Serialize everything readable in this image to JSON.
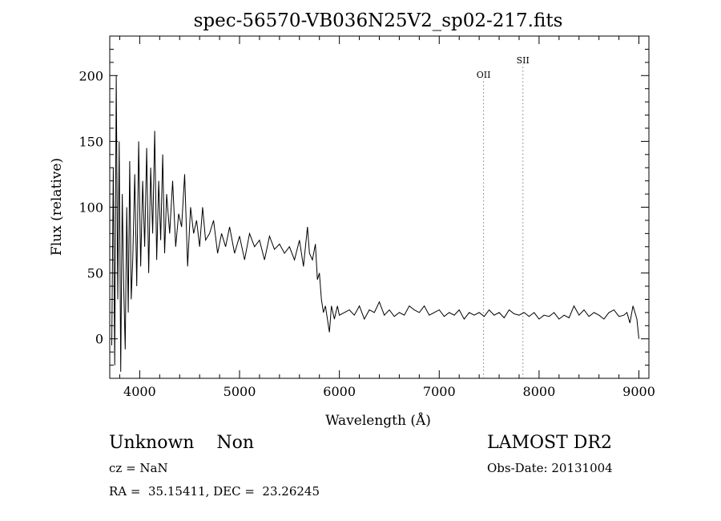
{
  "chart_data": {
    "type": "line",
    "title": "spec-56570-VB036N25V2_sp02-217.fits",
    "xlabel": "Wavelength (Å)",
    "ylabel": "Flux (relative)",
    "xlim": [
      3700,
      9100
    ],
    "ylim": [
      -30,
      230
    ],
    "xticks": [
      "4000",
      "5000",
      "6000",
      "7000",
      "8000",
      "9000"
    ],
    "yticks": [
      "0",
      "50",
      "100",
      "150",
      "200"
    ],
    "grid": false,
    "line_color": "#000000",
    "marker_color": "#7f7f7f",
    "lines": [
      {
        "label": "OII",
        "x": 7444
      },
      {
        "label": "SII",
        "x": 7838
      }
    ],
    "series": [
      {
        "x": [
          3720,
          3735,
          3750,
          3765,
          3780,
          3795,
          3810,
          3825,
          3840,
          3855,
          3870,
          3885,
          3900,
          3915,
          3930,
          3950,
          3970,
          3990,
          4010,
          4030,
          4050,
          4070,
          4090,
          4110,
          4130,
          4150,
          4170,
          4190,
          4210,
          4230,
          4250,
          4270,
          4300,
          4330,
          4360,
          4390,
          4420,
          4450,
          4480,
          4510,
          4540,
          4570,
          4600,
          4630,
          4660,
          4700,
          4740,
          4780,
          4820,
          4860,
          4900,
          4950,
          5000,
          5050,
          5100,
          5150,
          5200,
          5250,
          5300,
          5350,
          5400,
          5450,
          5500,
          5550,
          5600,
          5640,
          5680,
          5700,
          5730,
          5760,
          5780,
          5800,
          5820,
          5840,
          5860,
          5880,
          5900,
          5920,
          5950,
          5980,
          6000,
          6050,
          6100,
          6150,
          6200,
          6250,
          6300,
          6350,
          6400,
          6450,
          6500,
          6550,
          6600,
          6650,
          6700,
          6750,
          6800,
          6850,
          6900,
          6950,
          7000,
          7050,
          7100,
          7150,
          7200,
          7250,
          7300,
          7350,
          7400,
          7450,
          7500,
          7550,
          7600,
          7650,
          7700,
          7750,
          7800,
          7850,
          7900,
          7950,
          8000,
          8050,
          8100,
          8150,
          8200,
          8250,
          8300,
          8350,
          8400,
          8450,
          8500,
          8550,
          8600,
          8650,
          8700,
          8750,
          8800,
          8850,
          8880,
          8910,
          8940,
          8960,
          8980,
          9000
        ],
        "y": [
          -5,
          130,
          -20,
          200,
          30,
          150,
          -25,
          110,
          40,
          -8,
          100,
          20,
          135,
          30,
          60,
          125,
          40,
          150,
          55,
          120,
          70,
          145,
          50,
          130,
          80,
          158,
          60,
          120,
          75,
          140,
          65,
          110,
          80,
          120,
          70,
          95,
          85,
          125,
          55,
          100,
          80,
          90,
          70,
          100,
          75,
          80,
          90,
          65,
          80,
          70,
          85,
          65,
          78,
          60,
          80,
          70,
          75,
          60,
          78,
          68,
          72,
          65,
          70,
          60,
          75,
          55,
          85,
          65,
          60,
          72,
          45,
          50,
          30,
          20,
          25,
          15,
          5,
          25,
          15,
          25,
          18,
          20,
          22,
          18,
          25,
          15,
          22,
          20,
          28,
          18,
          22,
          17,
          20,
          18,
          25,
          22,
          20,
          25,
          18,
          20,
          22,
          17,
          20,
          18,
          22,
          15,
          20,
          18,
          20,
          17,
          22,
          18,
          20,
          16,
          22,
          19,
          18,
          20,
          17,
          20,
          15,
          18,
          17,
          20,
          15,
          18,
          16,
          25,
          18,
          22,
          17,
          20,
          18,
          15,
          20,
          22,
          17,
          18,
          20,
          12,
          25,
          20,
          15,
          0
        ]
      }
    ]
  },
  "info": {
    "class_text": "Unknown    Non",
    "survey": "LAMOST DR2",
    "cz": "cz = NaN",
    "obs_date": "Obs-Date: 20131004",
    "coords": "RA =  35.15411, DEC =  23.26245"
  }
}
